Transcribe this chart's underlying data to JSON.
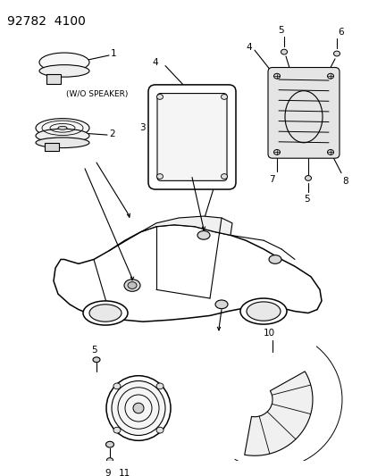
{
  "title": "92782  4100",
  "bg_color": "#ffffff",
  "line_color": "#000000",
  "title_fontsize": 10,
  "label_fontsize": 7.5,
  "lw": 0.8
}
